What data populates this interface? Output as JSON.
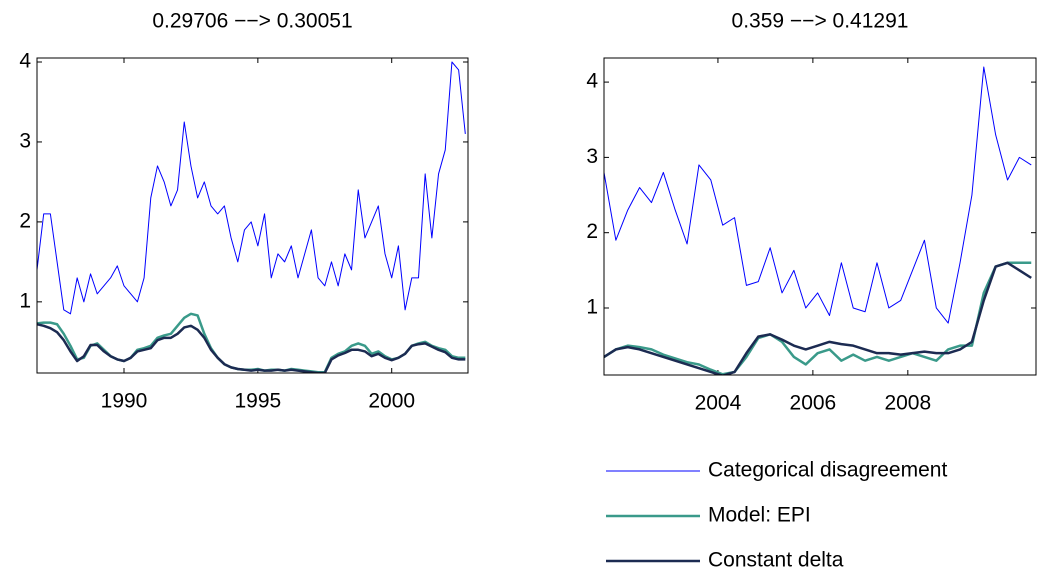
{
  "chart_data": [
    {
      "type": "line",
      "title": "0.29706 −−> 0.30051",
      "x": [
        1986.75,
        1987,
        1987.25,
        1987.5,
        1987.75,
        1988,
        1988.25,
        1988.5,
        1988.75,
        1989,
        1989.25,
        1989.5,
        1989.75,
        1990,
        1990.25,
        1990.5,
        1990.75,
        1991,
        1991.25,
        1991.5,
        1991.75,
        1992,
        1992.25,
        1992.5,
        1992.75,
        1993,
        1993.25,
        1993.5,
        1993.75,
        1994,
        1994.25,
        1994.5,
        1994.75,
        1995,
        1995.25,
        1995.5,
        1995.75,
        1996,
        1996.25,
        1996.5,
        1996.75,
        1997,
        1997.25,
        1997.5,
        1997.75,
        1998,
        1998.25,
        1998.5,
        1998.75,
        1999,
        1999.25,
        1999.5,
        1999.75,
        2000,
        2000.25,
        2000.5,
        2000.75,
        2001,
        2001.25,
        2001.5,
        2001.75,
        2002,
        2002.25,
        2002.5,
        2002.75
      ],
      "series": [
        {
          "color": "#0000ff",
          "values": [
            1.4,
            2.1,
            2.1,
            1.5,
            0.9,
            0.85,
            1.3,
            1.0,
            1.35,
            1.1,
            1.2,
            1.3,
            1.45,
            1.2,
            1.1,
            1.0,
            1.3,
            2.3,
            2.7,
            2.5,
            2.2,
            2.4,
            3.25,
            2.7,
            2.3,
            2.5,
            2.2,
            2.1,
            2.2,
            1.8,
            1.5,
            1.9,
            2.0,
            1.7,
            2.1,
            1.3,
            1.6,
            1.5,
            1.7,
            1.3,
            1.6,
            1.9,
            1.3,
            1.2,
            1.5,
            1.2,
            1.6,
            1.4,
            2.4,
            1.8,
            2.0,
            2.2,
            1.6,
            1.3,
            1.7,
            0.9,
            1.3,
            1.3,
            2.6,
            1.8,
            2.6,
            2.9,
            4.0,
            3.9,
            3.1
          ]
        },
        {
          "color": "#3a9a8a",
          "values": [
            0.73,
            0.74,
            0.74,
            0.72,
            0.6,
            0.45,
            0.28,
            0.3,
            0.45,
            0.48,
            0.4,
            0.32,
            0.28,
            0.26,
            0.3,
            0.4,
            0.42,
            0.45,
            0.55,
            0.58,
            0.6,
            0.7,
            0.8,
            0.85,
            0.83,
            0.6,
            0.42,
            0.3,
            0.22,
            0.18,
            0.16,
            0.15,
            0.15,
            0.16,
            0.14,
            0.15,
            0.15,
            0.14,
            0.16,
            0.15,
            0.14,
            0.13,
            0.12,
            0.12,
            0.3,
            0.35,
            0.38,
            0.45,
            0.48,
            0.45,
            0.35,
            0.38,
            0.32,
            0.28,
            0.3,
            0.35,
            0.45,
            0.48,
            0.5,
            0.45,
            0.42,
            0.4,
            0.32,
            0.3,
            0.3
          ]
        },
        {
          "color": "#1c2b52",
          "values": [
            0.72,
            0.7,
            0.67,
            0.62,
            0.52,
            0.38,
            0.26,
            0.32,
            0.46,
            0.46,
            0.38,
            0.32,
            0.28,
            0.26,
            0.3,
            0.38,
            0.4,
            0.42,
            0.52,
            0.55,
            0.55,
            0.6,
            0.68,
            0.7,
            0.65,
            0.55,
            0.4,
            0.3,
            0.22,
            0.18,
            0.16,
            0.15,
            0.14,
            0.15,
            0.14,
            0.14,
            0.15,
            0.14,
            0.15,
            0.14,
            0.13,
            0.12,
            0.11,
            0.11,
            0.28,
            0.33,
            0.36,
            0.4,
            0.4,
            0.38,
            0.32,
            0.35,
            0.3,
            0.27,
            0.3,
            0.35,
            0.45,
            0.47,
            0.48,
            0.44,
            0.4,
            0.37,
            0.3,
            0.28,
            0.28
          ]
        }
      ],
      "xlim": [
        1986.75,
        2002.85
      ],
      "xticks": [
        1990,
        1995,
        2000
      ],
      "ylim": [
        0.11,
        4.05
      ],
      "yticks": [
        1,
        2,
        3,
        4
      ]
    },
    {
      "type": "line",
      "title": "0.359 −−> 0.41291",
      "x": [
        2001.6,
        2001.85,
        2002.1,
        2002.35,
        2002.6,
        2002.85,
        2003.1,
        2003.35,
        2003.6,
        2003.85,
        2004.1,
        2004.35,
        2004.6,
        2004.85,
        2005.1,
        2005.35,
        2005.6,
        2005.85,
        2006.1,
        2006.35,
        2006.6,
        2006.85,
        2007.1,
        2007.35,
        2007.6,
        2007.85,
        2008.1,
        2008.35,
        2008.6,
        2008.85,
        2009.1,
        2009.35,
        2009.6,
        2009.85,
        2010.1,
        2010.35,
        2010.6
      ],
      "series": [
        {
          "name": "Categorical disagreement",
          "color": "#0000ff",
          "values": [
            2.8,
            1.9,
            2.3,
            2.6,
            2.4,
            2.8,
            2.3,
            1.85,
            2.9,
            2.7,
            2.1,
            2.2,
            1.3,
            1.35,
            1.8,
            1.2,
            1.5,
            1.0,
            1.2,
            0.9,
            1.6,
            1.0,
            0.95,
            1.6,
            1.0,
            1.1,
            1.5,
            1.9,
            1.0,
            0.8,
            1.6,
            2.5,
            4.2,
            3.3,
            2.7,
            3.0,
            2.9
          ]
        },
        {
          "name": "Model: EPI",
          "color": "#3a9a8a",
          "values": [
            0.35,
            0.45,
            0.5,
            0.48,
            0.45,
            0.38,
            0.33,
            0.28,
            0.25,
            0.18,
            0.12,
            0.15,
            0.35,
            0.6,
            0.65,
            0.55,
            0.35,
            0.25,
            0.4,
            0.45,
            0.3,
            0.38,
            0.3,
            0.35,
            0.3,
            0.35,
            0.4,
            0.35,
            0.3,
            0.45,
            0.5,
            0.5,
            1.2,
            1.55,
            1.6,
            1.6,
            1.6
          ]
        },
        {
          "name": "Constant delta",
          "color": "#1c2b52",
          "values": [
            0.35,
            0.45,
            0.48,
            0.45,
            0.4,
            0.35,
            0.3,
            0.25,
            0.2,
            0.15,
            0.1,
            0.15,
            0.4,
            0.62,
            0.65,
            0.58,
            0.5,
            0.45,
            0.5,
            0.55,
            0.52,
            0.5,
            0.45,
            0.4,
            0.4,
            0.38,
            0.4,
            0.42,
            0.4,
            0.4,
            0.45,
            0.55,
            1.1,
            1.55,
            1.6,
            1.5,
            1.4
          ]
        }
      ],
      "xlim": [
        2001.6,
        2010.7
      ],
      "xticks": [
        2004,
        2006,
        2008
      ],
      "ylim": [
        0.11,
        4.32
      ],
      "yticks": [
        1,
        2,
        3,
        4
      ]
    }
  ]
}
